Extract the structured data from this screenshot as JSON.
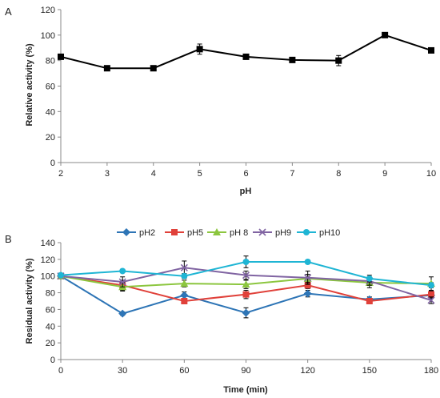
{
  "chart_data": [
    {
      "panel_label": "A",
      "type": "line",
      "xlabel": "pH",
      "ylabel": "Relative activity (%)",
      "xlim": [
        2,
        10
      ],
      "ylim": [
        0,
        120
      ],
      "xticks": [
        2,
        3,
        4,
        5,
        6,
        7,
        8,
        9,
        10
      ],
      "yticks": [
        0,
        20,
        40,
        60,
        80,
        100,
        120
      ],
      "grid": false,
      "series": [
        {
          "color": "#000000",
          "marker": "square",
          "x": [
            2,
            3,
            4,
            5,
            6,
            7,
            8,
            9,
            10
          ],
          "y": [
            83,
            74,
            74,
            89,
            83,
            80.5,
            80,
            100,
            88
          ],
          "error": [
            0,
            0,
            0,
            4,
            0,
            0,
            4,
            0,
            0
          ]
        }
      ]
    },
    {
      "panel_label": "B",
      "type": "line",
      "xlabel": "Time (min)",
      "ylabel": "Residual activity (%)",
      "xlim": [
        0,
        180
      ],
      "ylim": [
        0,
        140
      ],
      "xticks": [
        0,
        30,
        60,
        90,
        120,
        150,
        180
      ],
      "yticks": [
        0,
        20,
        40,
        60,
        80,
        100,
        120,
        140
      ],
      "grid": false,
      "legend_position": "top",
      "series": [
        {
          "name": "pH2",
          "color": "#2E75B6",
          "marker": "diamond",
          "x": [
            0,
            30,
            60,
            90,
            120,
            150,
            180
          ],
          "y": [
            100,
            55,
            77,
            56,
            79,
            72,
            77
          ],
          "error": [
            0,
            2,
            4,
            6,
            4,
            3,
            3
          ]
        },
        {
          "name": "pH5",
          "color": "#E0413A",
          "marker": "square",
          "x": [
            0,
            30,
            60,
            90,
            120,
            150,
            180
          ],
          "y": [
            100,
            89,
            70,
            78,
            89,
            70,
            78
          ],
          "error": [
            0,
            6,
            3,
            5,
            4,
            3,
            4
          ]
        },
        {
          "name": "pH 8",
          "color": "#8CC63F",
          "marker": "triangle",
          "x": [
            0,
            30,
            60,
            90,
            120,
            150,
            180
          ],
          "y": [
            100,
            87,
            91,
            90,
            97,
            92,
            91
          ],
          "error": [
            0,
            5,
            4,
            5,
            5,
            6,
            8
          ]
        },
        {
          "name": "pH9",
          "color": "#8064A2",
          "marker": "cross",
          "x": [
            0,
            30,
            60,
            90,
            120,
            150,
            180
          ],
          "y": [
            100,
            93,
            110,
            101,
            98,
            94,
            71
          ],
          "error": [
            0,
            6,
            8,
            5,
            8,
            5,
            4
          ]
        },
        {
          "name": "pH10",
          "color": "#1FB5D4",
          "marker": "circle",
          "x": [
            0,
            30,
            60,
            90,
            120,
            150,
            180
          ],
          "y": [
            101,
            106,
            100,
            117,
            117,
            97,
            89
          ],
          "error": [
            0,
            2,
            3,
            7,
            2,
            4,
            3
          ]
        }
      ]
    }
  ]
}
